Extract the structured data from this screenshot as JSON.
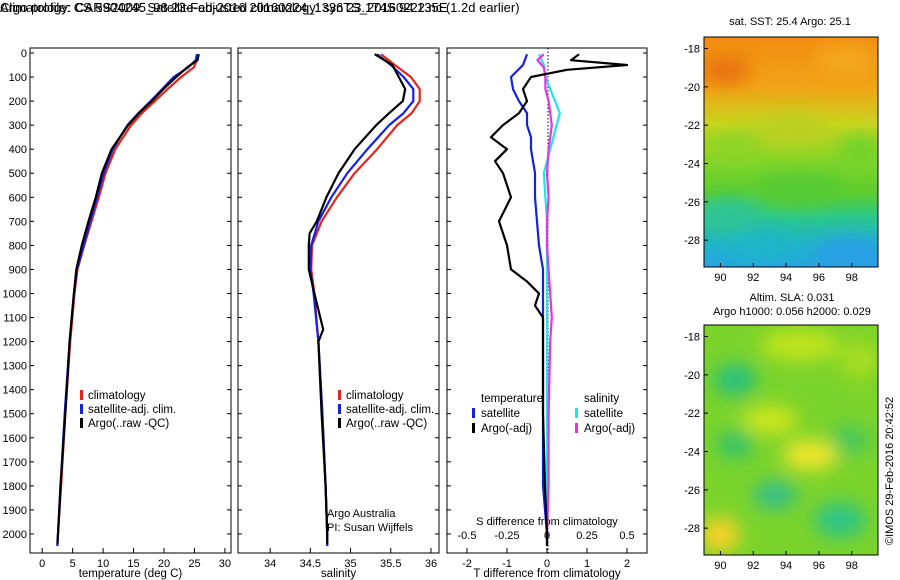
{
  "title_line1": "Argo profile: CS 5904245_98 23-Feb-2016 20160224_1336 23.174S 94.135E",
  "title_line2": "Climatology: CARS2009. Satellite-adjusted climatology: synTS_20160222.nc (1.2d earlier)",
  "timestamp": "©IMOS 29-Feb-2016 20:42:52",
  "credits": {
    "line1": "Argo Australia",
    "line2": "PI: Susan Wijffels"
  },
  "colors": {
    "climatology": "#e8231c",
    "satellite": "#1222e0",
    "argo": "#000000",
    "sat_salinity": "#1fe6e6",
    "argo_salinity": "#e633e6"
  },
  "chart_data": [
    {
      "type": "line",
      "xlabel": "temperature (deg C)",
      "ylabel": "",
      "xlim": [
        -2,
        31
      ],
      "ylim": [
        2100,
        0
      ],
      "xticks": [
        0,
        5,
        10,
        15,
        20,
        25,
        30
      ],
      "yticks": [
        0,
        100,
        200,
        300,
        400,
        500,
        600,
        700,
        800,
        900,
        1000,
        1100,
        1200,
        1300,
        1400,
        1500,
        1600,
        1700,
        1800,
        1900,
        2000
      ],
      "legend": [
        "climatology",
        "satellite-adj. clim.",
        "Argo(..raw -QC)"
      ],
      "series": [
        {
          "name": "climatology",
          "depth": [
            5,
            30,
            60,
            100,
            150,
            200,
            250,
            300,
            400,
            500,
            600,
            700,
            800,
            900,
            1000,
            1200,
            1500,
            1800,
            2000,
            2050
          ],
          "values": [
            25.6,
            25.4,
            24.9,
            22.8,
            20.6,
            18.5,
            16.4,
            14.6,
            12.0,
            10.4,
            9.3,
            8.1,
            6.9,
            5.8,
            5.3,
            4.6,
            3.8,
            3.1,
            2.6,
            2.5
          ]
        },
        {
          "name": "satellite-adj. clim.",
          "depth": [
            5,
            30,
            60,
            100,
            150,
            200,
            250,
            300,
            400,
            500,
            600,
            700,
            800,
            900,
            1000,
            1200,
            1500,
            1800,
            2000,
            2050
          ],
          "values": [
            25.4,
            25.2,
            24.0,
            21.6,
            19.7,
            17.8,
            15.8,
            14.0,
            11.6,
            10.1,
            9.0,
            7.9,
            6.8,
            5.7,
            5.2,
            4.5,
            3.7,
            3.0,
            2.6,
            2.5
          ]
        },
        {
          "name": "Argo(..raw -QC)",
          "depth": [
            5,
            30,
            60,
            100,
            150,
            200,
            250,
            300,
            400,
            500,
            600,
            700,
            800,
            900,
            1000,
            1200,
            1500,
            1800,
            2000,
            2040
          ],
          "values": [
            25.7,
            25.5,
            23.8,
            22.0,
            19.9,
            18.0,
            15.9,
            14.1,
            11.4,
            9.8,
            8.8,
            7.6,
            6.5,
            5.6,
            5.2,
            4.5,
            3.8,
            3.0,
            2.6,
            2.5
          ]
        }
      ]
    },
    {
      "type": "line",
      "xlabel": "salinity",
      "ylabel": "",
      "xlim": [
        33.6,
        36.1
      ],
      "ylim": [
        2100,
        0
      ],
      "xticks": [
        34,
        34.5,
        35,
        35.5,
        36
      ],
      "legend": [
        "climatology",
        "satellite-adj. clim.",
        "Argo(..raw -QC)"
      ],
      "series": [
        {
          "name": "climatology",
          "depth": [
            5,
            50,
            100,
            150,
            200,
            250,
            300,
            400,
            500,
            600,
            700,
            800,
            900,
            1000,
            1200,
            1500,
            1800,
            2000,
            2050
          ],
          "values": [
            35.38,
            35.55,
            35.75,
            35.86,
            35.86,
            35.76,
            35.58,
            35.33,
            35.05,
            34.83,
            34.64,
            34.52,
            34.51,
            34.55,
            34.6,
            34.65,
            34.69,
            34.71,
            34.71
          ]
        },
        {
          "name": "satellite-adj. clim.",
          "depth": [
            5,
            50,
            100,
            150,
            200,
            250,
            300,
            400,
            500,
            600,
            700,
            800,
            900,
            1000,
            1200,
            1500,
            1800,
            2000,
            2050
          ],
          "values": [
            35.33,
            35.5,
            35.66,
            35.78,
            35.78,
            35.66,
            35.48,
            35.21,
            34.96,
            34.76,
            34.6,
            34.51,
            34.5,
            34.54,
            34.6,
            34.65,
            34.69,
            34.71,
            34.71
          ]
        },
        {
          "name": "Argo(..raw -QC)",
          "depth": [
            5,
            50,
            100,
            150,
            200,
            250,
            300,
            400,
            500,
            600,
            700,
            750,
            800,
            900,
            1000,
            1150,
            1200,
            1500,
            1800,
            2000,
            2040
          ],
          "values": [
            35.3,
            35.52,
            35.6,
            35.68,
            35.65,
            35.48,
            35.32,
            35.05,
            34.85,
            34.7,
            34.58,
            34.49,
            34.48,
            34.48,
            34.55,
            34.66,
            34.6,
            34.64,
            34.69,
            34.71,
            34.71
          ]
        }
      ]
    },
    {
      "type": "line",
      "xlabel": "T difference from climatology",
      "xlabel_top": "S difference from climatology",
      "xlim": [
        -2.5,
        2.5
      ],
      "ylim": [
        2100,
        0
      ],
      "xticks": [
        -2,
        -1,
        0,
        1,
        2
      ],
      "xticks_top": [
        "-0.5",
        "-0.25",
        "0",
        "0.25",
        "0.5"
      ],
      "legend_temperature_title": "temperature",
      "legend_salinity_title": "salinity",
      "legend": [
        "satellite",
        "Argo(-adj)",
        "satellite",
        "Argo(-adj)"
      ],
      "series": [
        {
          "name": "satellite",
          "depth": [
            5,
            50,
            100,
            150,
            200,
            250,
            300,
            350,
            400,
            500,
            600,
            700,
            800,
            900,
            1000,
            1200,
            1500,
            1800,
            2000,
            2050
          ],
          "values": [
            -0.5,
            -0.6,
            -0.9,
            -0.85,
            -0.7,
            -0.5,
            -0.5,
            -0.4,
            -0.4,
            -0.3,
            -0.3,
            -0.25,
            -0.2,
            -0.1,
            -0.1,
            -0.1,
            -0.1,
            -0.1,
            0,
            0
          ]
        },
        {
          "name": "Argo(-adj)",
          "depth": [
            5,
            30,
            50,
            70,
            100,
            150,
            200,
            250,
            300,
            350,
            400,
            450,
            500,
            600,
            700,
            800,
            900,
            950,
            1000,
            1050,
            1100,
            1200,
            1500,
            1800,
            2000,
            2050
          ],
          "values": [
            0.8,
            0.6,
            2.0,
            0.5,
            -0.4,
            -0.6,
            -0.5,
            -0.7,
            -1.1,
            -1.4,
            -1.0,
            -1.3,
            -1.1,
            -0.9,
            -1.2,
            -1.0,
            -0.9,
            -0.5,
            -0.2,
            -0.3,
            -0.1,
            -0.1,
            -0.1,
            -0.05,
            0,
            0
          ]
        },
        {
          "name": "satellite",
          "depth": [
            5,
            50,
            100,
            150,
            200,
            250,
            300,
            350,
            400,
            450,
            500,
            600,
            700,
            800,
            900,
            1000,
            1100,
            1200,
            1500,
            1800,
            2000
          ],
          "values": [
            -0.05,
            -0.02,
            -0.01,
            0.02,
            0.05,
            0.08,
            0.06,
            0.04,
            0.02,
            0.0,
            -0.02,
            -0.01,
            0.0,
            0.0,
            0.0,
            0.0,
            0.0,
            0.0,
            0.0,
            0.0,
            0.0
          ]
        },
        {
          "name": "Argo(-adj)",
          "depth": [
            5,
            30,
            60,
            100,
            150,
            200,
            300,
            400,
            500,
            600,
            700,
            800,
            900,
            1000,
            1100,
            1200,
            1500,
            1800,
            2000
          ],
          "values": [
            -0.02,
            -0.06,
            -0.02,
            -0.01,
            -0.01,
            0.01,
            0.03,
            0.01,
            0.0,
            0.01,
            0.0,
            0.0,
            0.01,
            0.02,
            0.03,
            0.02,
            0.01,
            0.01,
            0.0
          ]
        }
      ]
    },
    {
      "type": "heatmap",
      "title": "sat. SST: 25.4  Argo: 25.1",
      "xlim": [
        89,
        99.6
      ],
      "ylim": [
        -29.4,
        -17.4
      ],
      "xticks": [
        90,
        92,
        94,
        96,
        98
      ],
      "yticks": [
        -18,
        -20,
        -22,
        -24,
        -26,
        -28
      ],
      "point": [
        94.135,
        -23.174
      ]
    },
    {
      "type": "heatmap",
      "title_line1": "Altim. SLA: 0.031",
      "title_line2": "Argo h1000: 0.056  h2000: 0.029",
      "xlim": [
        89,
        99.6
      ],
      "ylim": [
        -29.4,
        -17.4
      ],
      "xticks": [
        90,
        92,
        94,
        96,
        98
      ],
      "yticks": [
        -18,
        -20,
        -22,
        -24,
        -26,
        -28
      ],
      "point": [
        94.135,
        -23.174
      ]
    }
  ]
}
